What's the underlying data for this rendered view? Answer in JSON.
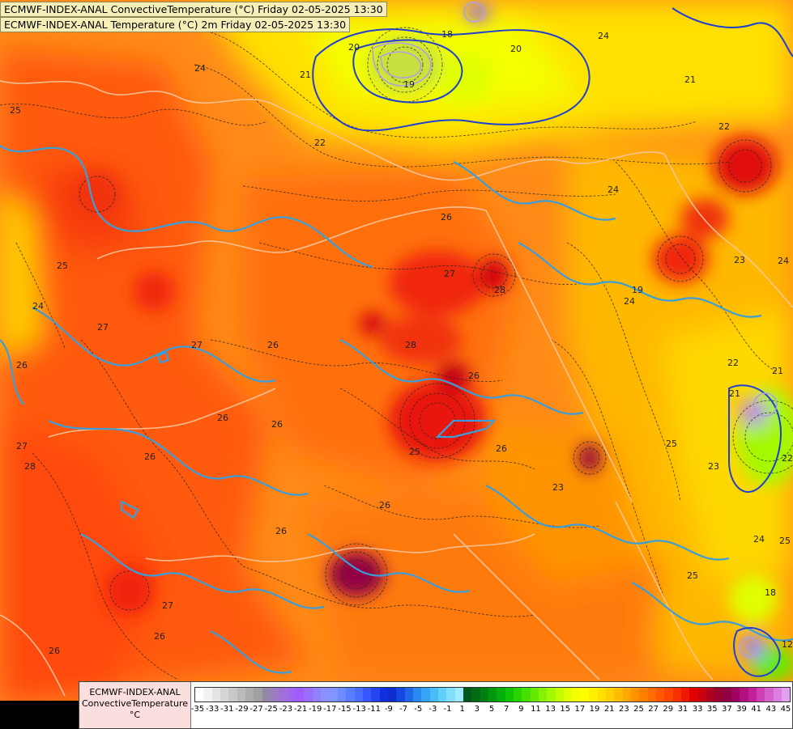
{
  "titles": {
    "line1": "ECMWF-INDEX-ANAL ConvectiveTemperature (°C) Friday 02-05-2025 13:30",
    "line2": "ECMWF-INDEX-ANAL Temperature (°C) 2m Friday 02-05-2025 13:30"
  },
  "legend": {
    "label_line1": "ECMWF-INDEX-ANAL",
    "label_line2": "ConvectiveTemperature",
    "label_line3": "°C",
    "ticks": [
      "-35",
      "-33",
      "-31",
      "-29",
      "-27",
      "-25",
      "-23",
      "-21",
      "-19",
      "-17",
      "-15",
      "-13",
      "-11",
      "-9",
      "-7",
      "-5",
      "-3",
      "-1",
      "1",
      "3",
      "5",
      "7",
      "9",
      "11",
      "13",
      "15",
      "17",
      "19",
      "21",
      "23",
      "25",
      "27",
      "29",
      "31",
      "33",
      "35",
      "37",
      "39",
      "41",
      "43",
      "45"
    ],
    "colors": [
      "#ffffff",
      "#f2f2f2",
      "#e4e4e4",
      "#d6d6d6",
      "#c8c8c8",
      "#bababa",
      "#acacac",
      "#a0a0a0",
      "#9488a8",
      "#9a7cc0",
      "#a070d8",
      "#a064f0",
      "#a05cff",
      "#9a6cff",
      "#9280ff",
      "#8a90ff",
      "#7f96ff",
      "#6a8cff",
      "#5a7cff",
      "#4a6cff",
      "#3858ff",
      "#2444f0",
      "#1030e0",
      "#0c2cd0",
      "#1448e0",
      "#1c68e8",
      "#2888f0",
      "#34a4f4",
      "#48bcf8",
      "#60d0fa",
      "#80e0fc",
      "#a0ecfe",
      "#00581c",
      "#006c14",
      "#008010",
      "#00980c",
      "#00b008",
      "#10c404",
      "#28d400",
      "#44e000",
      "#64ea00",
      "#84f200",
      "#a4f800",
      "#c4fc00",
      "#e0ff00",
      "#f4ff00",
      "#ffff00",
      "#fff000",
      "#ffe000",
      "#ffd000",
      "#ffbc00",
      "#ffa800",
      "#ff9400",
      "#ff8000",
      "#ff6c00",
      "#ff5800",
      "#ff4400",
      "#f83000",
      "#f01800",
      "#e00000",
      "#c80010",
      "#b00020",
      "#980030",
      "#900044",
      "#a00060",
      "#b0107c",
      "#c02098",
      "#cc40b4",
      "#d460cc",
      "#dc80e0",
      "#e4a0f0"
    ]
  },
  "contour_labels": [
    "25",
    "24",
    "25",
    "20",
    "24",
    "27",
    "26",
    "26",
    "27",
    "28",
    "26",
    "26",
    "27",
    "26",
    "26",
    "26",
    "25",
    "26",
    "28",
    "26",
    "27",
    "28",
    "26",
    "27",
    "26",
    "23",
    "21",
    "19",
    "18",
    "20",
    "22",
    "24",
    "21",
    "19",
    "22",
    "25",
    "24",
    "22",
    "23",
    "24",
    "23",
    "21",
    "22",
    "24",
    "25",
    "24",
    "25",
    "26",
    "21",
    "18",
    "12"
  ]
}
